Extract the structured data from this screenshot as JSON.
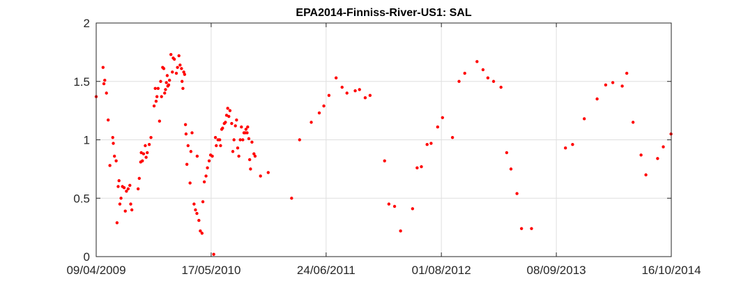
{
  "chart_data": {
    "type": "scatter",
    "title": "EPA2014-Finniss-River-US1: SAL",
    "xlabel": "",
    "ylabel": "",
    "x_is_date": true,
    "xlim": [
      "2009-04-09",
      "2014-10-16"
    ],
    "ylim": [
      0,
      2
    ],
    "x_ticks": [
      {
        "date": "2009-04-09",
        "label": "09/04/2009"
      },
      {
        "date": "2010-05-17",
        "label": "17/05/2010"
      },
      {
        "date": "2011-06-24",
        "label": "24/06/2011"
      },
      {
        "date": "2012-08-01",
        "label": "01/08/2012"
      },
      {
        "date": "2013-09-08",
        "label": "08/09/2013"
      },
      {
        "date": "2014-10-16",
        "label": "16/10/2014"
      }
    ],
    "y_ticks": [
      {
        "value": 0,
        "label": "0"
      },
      {
        "value": 0.5,
        "label": "0.5"
      },
      {
        "value": 1,
        "label": "1"
      },
      {
        "value": 1.5,
        "label": "1.5"
      },
      {
        "value": 2,
        "label": "2"
      }
    ],
    "grid": true,
    "marker_color": "#ff0000",
    "points": [
      {
        "x": "2009-04-09",
        "y": 1.37
      },
      {
        "x": "2009-05-03",
        "y": 1.62
      },
      {
        "x": "2009-05-06",
        "y": 1.48
      },
      {
        "x": "2009-05-09",
        "y": 1.51
      },
      {
        "x": "2009-05-15",
        "y": 1.4
      },
      {
        "x": "2009-05-21",
        "y": 1.17
      },
      {
        "x": "2009-05-27",
        "y": 0.78
      },
      {
        "x": "2009-06-06",
        "y": 1.02
      },
      {
        "x": "2009-06-08",
        "y": 0.97
      },
      {
        "x": "2009-06-12",
        "y": 0.86
      },
      {
        "x": "2009-06-18",
        "y": 0.82
      },
      {
        "x": "2009-06-21",
        "y": 0.29
      },
      {
        "x": "2009-06-25",
        "y": 0.6
      },
      {
        "x": "2009-06-28",
        "y": 0.65
      },
      {
        "x": "2009-07-01",
        "y": 0.45
      },
      {
        "x": "2009-07-05",
        "y": 0.5
      },
      {
        "x": "2009-07-10",
        "y": 0.6
      },
      {
        "x": "2009-07-16",
        "y": 0.59
      },
      {
        "x": "2009-07-20",
        "y": 0.39
      },
      {
        "x": "2009-07-24",
        "y": 0.56
      },
      {
        "x": "2009-07-30",
        "y": 0.58
      },
      {
        "x": "2009-08-05",
        "y": 0.61
      },
      {
        "x": "2009-08-08",
        "y": 0.45
      },
      {
        "x": "2009-08-12",
        "y": 0.4
      },
      {
        "x": "2009-09-03",
        "y": 0.58
      },
      {
        "x": "2009-09-07",
        "y": 0.67
      },
      {
        "x": "2009-09-12",
        "y": 0.81
      },
      {
        "x": "2009-09-14",
        "y": 0.89
      },
      {
        "x": "2009-09-18",
        "y": 0.82
      },
      {
        "x": "2009-09-22",
        "y": 0.88
      },
      {
        "x": "2009-09-28",
        "y": 0.95
      },
      {
        "x": "2009-10-01",
        "y": 0.85
      },
      {
        "x": "2009-10-05",
        "y": 0.89
      },
      {
        "x": "2009-10-12",
        "y": 0.96
      },
      {
        "x": "2009-10-18",
        "y": 1.02
      },
      {
        "x": "2009-10-29",
        "y": 1.29
      },
      {
        "x": "2009-11-02",
        "y": 1.44
      },
      {
        "x": "2009-11-05",
        "y": 1.33
      },
      {
        "x": "2009-11-08",
        "y": 1.37
      },
      {
        "x": "2009-11-12",
        "y": 1.44
      },
      {
        "x": "2009-11-17",
        "y": 1.16
      },
      {
        "x": "2009-11-21",
        "y": 1.5
      },
      {
        "x": "2009-11-24",
        "y": 1.37
      },
      {
        "x": "2009-11-28",
        "y": 1.62
      },
      {
        "x": "2009-12-02",
        "y": 1.61
      },
      {
        "x": "2009-12-05",
        "y": 1.4
      },
      {
        "x": "2009-12-08",
        "y": 1.43
      },
      {
        "x": "2009-12-11",
        "y": 1.49
      },
      {
        "x": "2009-12-14",
        "y": 1.55
      },
      {
        "x": "2009-12-16",
        "y": 1.46
      },
      {
        "x": "2009-12-19",
        "y": 1.47
      },
      {
        "x": "2009-12-22",
        "y": 1.51
      },
      {
        "x": "2009-12-27",
        "y": 1.73
      },
      {
        "x": "2010-01-01",
        "y": 1.58
      },
      {
        "x": "2010-01-04",
        "y": 1.7
      },
      {
        "x": "2010-01-08",
        "y": 1.69
      },
      {
        "x": "2010-01-15",
        "y": 1.57
      },
      {
        "x": "2010-01-19",
        "y": 1.62
      },
      {
        "x": "2010-01-24",
        "y": 1.72
      },
      {
        "x": "2010-01-28",
        "y": 1.64
      },
      {
        "x": "2010-02-02",
        "y": 1.61
      },
      {
        "x": "2010-02-04",
        "y": 1.5
      },
      {
        "x": "2010-02-07",
        "y": 1.44
      },
      {
        "x": "2010-02-10",
        "y": 1.58
      },
      {
        "x": "2010-02-13",
        "y": 1.56
      },
      {
        "x": "2010-02-16",
        "y": 1.13
      },
      {
        "x": "2010-02-18",
        "y": 1.05
      },
      {
        "x": "2010-02-21",
        "y": 0.79
      },
      {
        "x": "2010-02-25",
        "y": 0.95
      },
      {
        "x": "2010-03-04",
        "y": 0.63
      },
      {
        "x": "2010-03-07",
        "y": 0.9
      },
      {
        "x": "2010-03-11",
        "y": 1.06
      },
      {
        "x": "2010-03-18",
        "y": 0.45
      },
      {
        "x": "2010-03-23",
        "y": 0.4
      },
      {
        "x": "2010-03-28",
        "y": 0.37
      },
      {
        "x": "2010-03-29",
        "y": 0.86
      },
      {
        "x": "2010-04-04",
        "y": 0.31
      },
      {
        "x": "2010-04-09",
        "y": 0.22
      },
      {
        "x": "2010-04-15",
        "y": 0.2
      },
      {
        "x": "2010-04-18",
        "y": 0.47
      },
      {
        "x": "2010-04-23",
        "y": 0.64
      },
      {
        "x": "2010-04-29",
        "y": 0.69
      },
      {
        "x": "2010-05-04",
        "y": 0.76
      },
      {
        "x": "2010-05-10",
        "y": 0.82
      },
      {
        "x": "2010-05-15",
        "y": 0.87
      },
      {
        "x": "2010-05-21",
        "y": 0.86
      },
      {
        "x": "2010-05-26",
        "y": 0.02
      },
      {
        "x": "2010-06-01",
        "y": 1.02
      },
      {
        "x": "2010-06-04",
        "y": 0.95
      },
      {
        "x": "2010-06-10",
        "y": 1.0
      },
      {
        "x": "2010-06-16",
        "y": 1.0
      },
      {
        "x": "2010-06-19",
        "y": 0.95
      },
      {
        "x": "2010-06-23",
        "y": 1.09
      },
      {
        "x": "2010-06-26",
        "y": 1.1
      },
      {
        "x": "2010-07-02",
        "y": 1.14
      },
      {
        "x": "2010-07-06",
        "y": 1.15
      },
      {
        "x": "2010-07-10",
        "y": 1.21
      },
      {
        "x": "2010-07-14",
        "y": 1.27
      },
      {
        "x": "2010-07-18",
        "y": 1.2
      },
      {
        "x": "2010-07-22",
        "y": 1.25
      },
      {
        "x": "2010-07-28",
        "y": 1.14
      },
      {
        "x": "2010-08-01",
        "y": 0.9
      },
      {
        "x": "2010-08-05",
        "y": 1.0
      },
      {
        "x": "2010-08-10",
        "y": 1.12
      },
      {
        "x": "2010-08-14",
        "y": 1.17
      },
      {
        "x": "2010-08-18",
        "y": 0.93
      },
      {
        "x": "2010-08-22",
        "y": 0.86
      },
      {
        "x": "2010-08-27",
        "y": 1.0
      },
      {
        "x": "2010-08-31",
        "y": 1.11
      },
      {
        "x": "2010-09-05",
        "y": 1.0
      },
      {
        "x": "2010-09-09",
        "y": 1.06
      },
      {
        "x": "2010-09-13",
        "y": 1.06
      },
      {
        "x": "2010-09-16",
        "y": 1.09
      },
      {
        "x": "2010-09-20",
        "y": 1.06
      },
      {
        "x": "2010-09-22",
        "y": 1.11
      },
      {
        "x": "2010-09-26",
        "y": 1.01
      },
      {
        "x": "2010-09-29",
        "y": 0.83
      },
      {
        "x": "2010-10-02",
        "y": 0.75
      },
      {
        "x": "2010-10-07",
        "y": 0.98
      },
      {
        "x": "2010-10-14",
        "y": 0.88
      },
      {
        "x": "2010-10-18",
        "y": 0.86
      },
      {
        "x": "2010-11-06",
        "y": 0.69
      },
      {
        "x": "2010-12-03",
        "y": 0.72
      },
      {
        "x": "2011-02-23",
        "y": 0.5
      },
      {
        "x": "2011-03-23",
        "y": 1.0
      },
      {
        "x": "2011-05-03",
        "y": 1.15
      },
      {
        "x": "2011-05-31",
        "y": 1.23
      },
      {
        "x": "2011-06-16",
        "y": 1.29
      },
      {
        "x": "2011-07-04",
        "y": 1.38
      },
      {
        "x": "2011-07-29",
        "y": 1.53
      },
      {
        "x": "2011-08-19",
        "y": 1.45
      },
      {
        "x": "2011-09-05",
        "y": 1.4
      },
      {
        "x": "2011-10-04",
        "y": 1.42
      },
      {
        "x": "2011-10-19",
        "y": 1.43
      },
      {
        "x": "2011-11-08",
        "y": 1.36
      },
      {
        "x": "2011-11-25",
        "y": 1.38
      },
      {
        "x": "2012-01-15",
        "y": 0.82
      },
      {
        "x": "2012-01-30",
        "y": 0.45
      },
      {
        "x": "2012-02-19",
        "y": 0.43
      },
      {
        "x": "2012-03-11",
        "y": 0.22
      },
      {
        "x": "2012-04-22",
        "y": 0.41
      },
      {
        "x": "2012-05-08",
        "y": 0.76
      },
      {
        "x": "2012-05-23",
        "y": 0.77
      },
      {
        "x": "2012-06-12",
        "y": 0.96
      },
      {
        "x": "2012-06-26",
        "y": 0.97
      },
      {
        "x": "2012-07-19",
        "y": 1.11
      },
      {
        "x": "2012-08-05",
        "y": 1.19
      },
      {
        "x": "2012-09-09",
        "y": 1.02
      },
      {
        "x": "2012-10-02",
        "y": 1.5
      },
      {
        "x": "2012-10-22",
        "y": 1.57
      },
      {
        "x": "2012-12-04",
        "y": 1.67
      },
      {
        "x": "2012-12-25",
        "y": 1.6
      },
      {
        "x": "2013-01-11",
        "y": 1.53
      },
      {
        "x": "2013-01-31",
        "y": 1.5
      },
      {
        "x": "2013-02-26",
        "y": 1.45
      },
      {
        "x": "2013-03-18",
        "y": 0.89
      },
      {
        "x": "2013-04-02",
        "y": 0.75
      },
      {
        "x": "2013-04-23",
        "y": 0.54
      },
      {
        "x": "2013-05-09",
        "y": 0.24
      },
      {
        "x": "2013-06-13",
        "y": 0.24
      },
      {
        "x": "2013-10-10",
        "y": 0.93
      },
      {
        "x": "2013-11-04",
        "y": 0.96
      },
      {
        "x": "2013-12-15",
        "y": 1.18
      },
      {
        "x": "2014-01-29",
        "y": 1.35
      },
      {
        "x": "2014-02-28",
        "y": 1.47
      },
      {
        "x": "2014-03-25",
        "y": 1.49
      },
      {
        "x": "2014-04-27",
        "y": 1.46
      },
      {
        "x": "2014-05-13",
        "y": 1.57
      },
      {
        "x": "2014-06-04",
        "y": 1.15
      },
      {
        "x": "2014-07-02",
        "y": 0.87
      },
      {
        "x": "2014-07-19",
        "y": 0.7
      },
      {
        "x": "2014-08-29",
        "y": 0.84
      },
      {
        "x": "2014-09-18",
        "y": 0.94
      },
      {
        "x": "2014-10-15",
        "y": 1.05
      }
    ]
  }
}
